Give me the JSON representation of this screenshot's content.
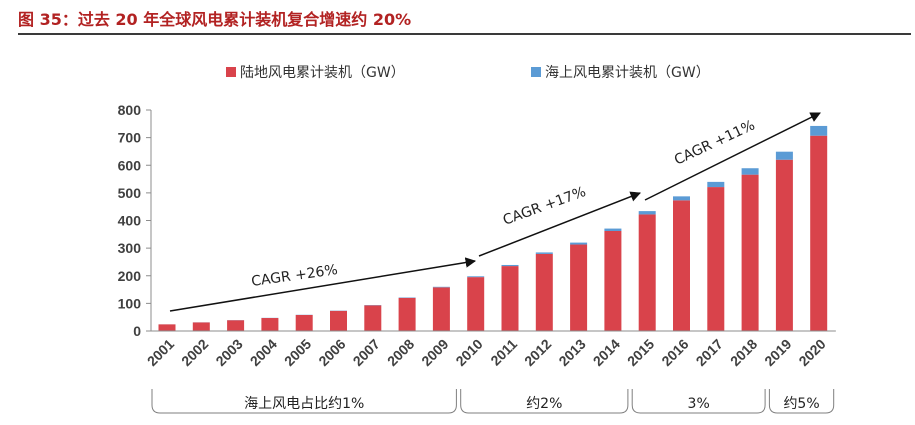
{
  "figure": {
    "title": "图 35：过去 20 年全球风电累计装机复合增速约 20%"
  },
  "chart_data": {
    "type": "bar",
    "stacked": true,
    "categories": [
      "2001",
      "2002",
      "2003",
      "2004",
      "2005",
      "2006",
      "2007",
      "2008",
      "2009",
      "2010",
      "2011",
      "2012",
      "2013",
      "2014",
      "2015",
      "2016",
      "2017",
      "2018",
      "2019",
      "2020"
    ],
    "series": [
      {
        "name": "陆地风电累计装机（GW）",
        "color": "#d9434b",
        "values": [
          24,
          31,
          39,
          47,
          58,
          73,
          93,
          120,
          158,
          195,
          235,
          279,
          313,
          362,
          422,
          473,
          521,
          566,
          620,
          707
        ]
      },
      {
        "name": "海上风电累计装机（GW）",
        "color": "#5b9bd5",
        "values": [
          0.1,
          0.3,
          0.5,
          0.6,
          0.7,
          0.9,
          1.1,
          1.5,
          2,
          3,
          4,
          5.4,
          7,
          8.8,
          12,
          14.4,
          18.8,
          23.2,
          29.1,
          35.3
        ]
      }
    ],
    "ylim": [
      0,
      800
    ],
    "yticks": [
      0,
      100,
      200,
      300,
      400,
      500,
      600,
      700,
      800
    ],
    "grid": false,
    "legend": "top",
    "annotations": [
      {
        "text": "CAGR +26%",
        "from": "2001",
        "to": "2010"
      },
      {
        "text": "CAGR +17%",
        "from": "2010",
        "to": "2015"
      },
      {
        "text": "CAGR +11%",
        "from": "2015",
        "to": "2020"
      }
    ],
    "offshore_share_groups": [
      {
        "label": "海上风电占比约1%",
        "from": "2001",
        "to": "2009"
      },
      {
        "label": "约2%",
        "from": "2010",
        "to": "2014"
      },
      {
        "label": "3%",
        "from": "2015",
        "to": "2018"
      },
      {
        "label": "约5%",
        "from": "2019",
        "to": "2020"
      }
    ]
  }
}
